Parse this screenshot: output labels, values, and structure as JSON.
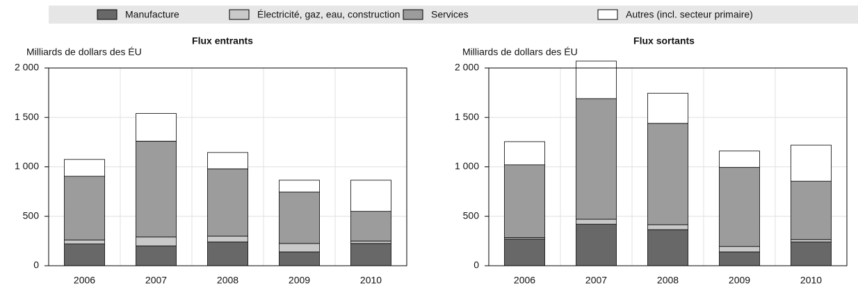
{
  "legend": {
    "series": [
      {
        "name": "Manufacture",
        "color": "#686868"
      },
      {
        "name": "Électricité, gaz, eau, construction",
        "color": "#c9c9c9"
      },
      {
        "name": "Services",
        "color": "#9c9c9c"
      },
      {
        "name": "Autres (incl. secteur primaire)",
        "color": "#ffffff"
      }
    ]
  },
  "chart_data": [
    {
      "type": "bar",
      "stacked": true,
      "title": "Flux entrants",
      "y_label": "Milliards de dollars des ÉU",
      "categories": [
        "2006",
        "2007",
        "2008",
        "2009",
        "2010"
      ],
      "series": [
        {
          "values": [
            220,
            200,
            240,
            140,
            225
          ]
        },
        {
          "values": [
            40,
            90,
            60,
            85,
            25
          ]
        },
        {
          "values": [
            645,
            970,
            680,
            520,
            300
          ]
        },
        {
          "values": [
            170,
            280,
            165,
            120,
            315
          ]
        }
      ],
      "ylim": [
        0,
        2000
      ],
      "yticks": [
        0,
        500,
        {
          "value": 1000,
          "label": "1 000"
        },
        {
          "value": 1500,
          "label": "1 500"
        },
        {
          "value": 2000,
          "label": "2 000"
        }
      ],
      "grid": true
    },
    {
      "type": "bar",
      "stacked": true,
      "title": "Flux sortants",
      "y_label": "Milliards de dollars des ÉU",
      "categories": [
        "2006",
        "2007",
        "2008",
        "2009",
        "2010"
      ],
      "series": [
        {
          "values": [
            270,
            420,
            365,
            140,
            240
          ]
        },
        {
          "values": [
            15,
            50,
            50,
            55,
            25
          ]
        },
        {
          "values": [
            735,
            1220,
            1025,
            800,
            590
          ]
        },
        {
          "values": [
            235,
            380,
            305,
            165,
            365
          ]
        }
      ],
      "ylim": [
        0,
        2000
      ],
      "yticks": [
        0,
        500,
        {
          "value": 1000,
          "label": "1 000"
        },
        {
          "value": 1500,
          "label": "1 500"
        },
        {
          "value": 2000,
          "label": "2 000"
        }
      ],
      "grid": true
    }
  ]
}
